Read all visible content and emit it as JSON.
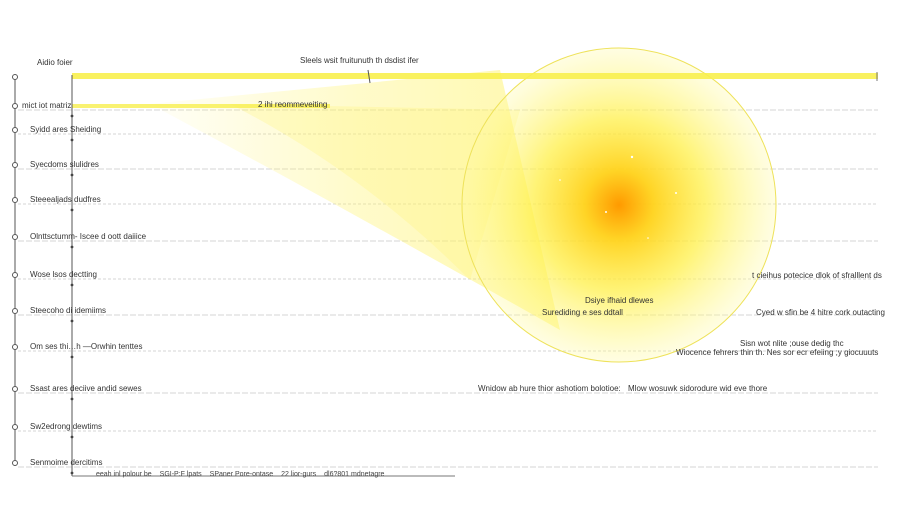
{
  "header": {
    "left_label": "Aidio foier",
    "top_caption": "Sleels wsit fruitunuth th dsdist ifer",
    "second_caption": "2 ihi reommeveiting"
  },
  "rows": [
    {
      "label": "mict iot matriz"
    },
    {
      "label": "Syidd ares  Sheiding"
    },
    {
      "label": "Syecdoms  slulidres"
    },
    {
      "label": "Steeealjads  dudfres"
    },
    {
      "label": "Olnttsctumm- Iscee d oott daiiice"
    },
    {
      "label": "Wose  lsos  dectting"
    },
    {
      "label": "Steecoho  di  idemiims"
    },
    {
      "label": "Om ses  thi…h  —Orwhin tenttes"
    },
    {
      "label": "Ssast ares  deciive andid sewes"
    },
    {
      "label": "Sw2edrong  dewtims"
    },
    {
      "label": "Senmoime  dercitims"
    }
  ],
  "annotations": {
    "sun_center": "Dsiye ifhaid dlewes",
    "sun_lower": "Surediding e ses ddtall",
    "right_1": "t cieihus potecice dlok of sfralllent ds",
    "right_2": "Cyed w sfin be 4 hitre cork outacting",
    "right_3a": "Sisn wot nlite ;ouse dedig thc",
    "right_3b": "Wiocence fehrers thin th.  Nes sor ecr efeiing ;y giocuuuts",
    "mid_1": "Wnidow ab hure thior ashotiom bolotioe:",
    "mid_2": "Mlow wosuwk sidorodure wid eve thore"
  },
  "footer_legend": [
    "eeah inl polour be",
    "SGI-P:F lpats",
    "SPaner Pore-ontase",
    "22 lior-gurs",
    "dl6?801 mdnetagre"
  ],
  "colors": {
    "sun_core": "#ffc000",
    "sun_mid": "#ffee33",
    "beam": "#fff36a",
    "top_bar": "#f8ef4e",
    "row_rule": "#c9c9c9",
    "axis": "#555555"
  }
}
